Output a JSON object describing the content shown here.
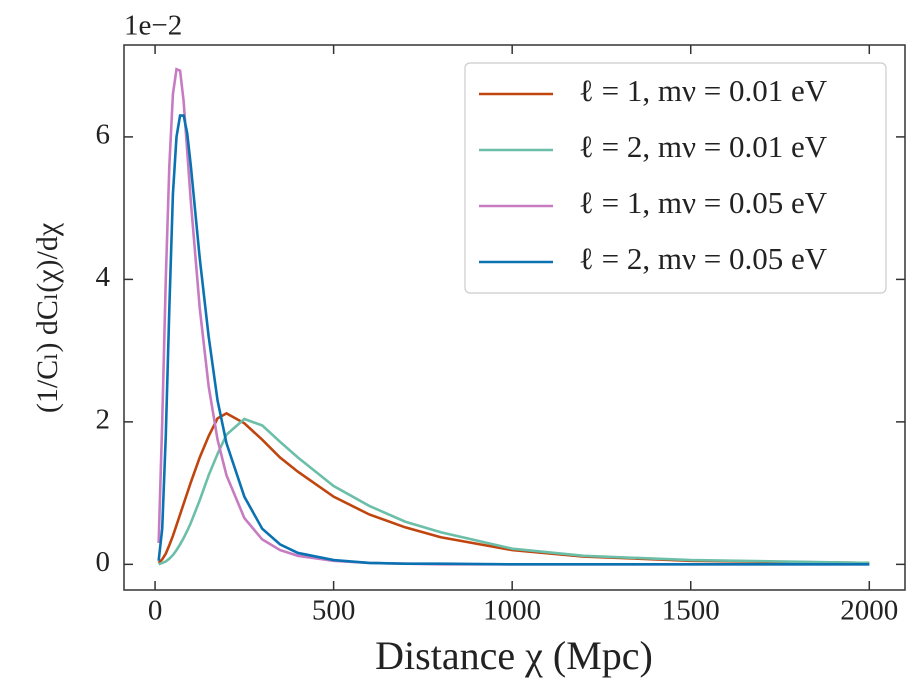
{
  "chart_data": {
    "type": "line",
    "xlabel": "Distance χ (Mpc)",
    "ylabel": "(1/Cₗ) dCₗ(χ)/dχ",
    "y_offset_label": "1e−2",
    "x": [
      10,
      20,
      30,
      40,
      50,
      60,
      70,
      80,
      90,
      100,
      125,
      150,
      175,
      200,
      250,
      300,
      350,
      400,
      500,
      600,
      700,
      800,
      1000,
      1200,
      1500,
      2000
    ],
    "series": [
      {
        "name": "ℓ = 1, mν = 0.01 eV",
        "color": "#c0450f",
        "values": [
          0.02,
          0.07,
          0.15,
          0.27,
          0.4,
          0.55,
          0.7,
          0.85,
          1.0,
          1.15,
          1.5,
          1.8,
          2.05,
          2.12,
          1.98,
          1.75,
          1.5,
          1.3,
          0.95,
          0.7,
          0.52,
          0.38,
          0.2,
          0.11,
          0.05,
          0.02
        ]
      },
      {
        "name": "ℓ = 2, mν = 0.01 eV",
        "color": "#6bbfa8",
        "values": [
          0.0,
          0.02,
          0.04,
          0.08,
          0.13,
          0.2,
          0.28,
          0.37,
          0.47,
          0.58,
          0.9,
          1.25,
          1.55,
          1.82,
          2.04,
          1.95,
          1.72,
          1.5,
          1.1,
          0.82,
          0.6,
          0.45,
          0.22,
          0.12,
          0.06,
          0.02
        ]
      },
      {
        "name": "ℓ = 1, mν = 0.05 eV",
        "color": "#c77cc2",
        "values": [
          0.3,
          2.0,
          4.0,
          5.6,
          6.6,
          6.95,
          6.93,
          6.5,
          5.8,
          5.1,
          3.6,
          2.5,
          1.75,
          1.25,
          0.65,
          0.35,
          0.2,
          0.12,
          0.05,
          0.02,
          0.01,
          0,
          0,
          0,
          0,
          0
        ]
      },
      {
        "name": "ℓ = 2, mν = 0.05 eV",
        "color": "#0b72b2",
        "values": [
          0.05,
          0.5,
          1.8,
          3.6,
          5.2,
          6.0,
          6.3,
          6.3,
          6.05,
          5.6,
          4.3,
          3.2,
          2.3,
          1.7,
          0.95,
          0.5,
          0.28,
          0.16,
          0.06,
          0.02,
          0.01,
          0.01,
          0,
          0,
          0,
          0
        ]
      }
    ],
    "xlim": [
      -87,
      2100
    ],
    "ylim": [
      -0.36,
      7.29
    ],
    "xticks": [
      0,
      500,
      1000,
      1500,
      2000
    ],
    "yticks": [
      0,
      2,
      4,
      6
    ],
    "grid": false,
    "legend": "upper right"
  }
}
